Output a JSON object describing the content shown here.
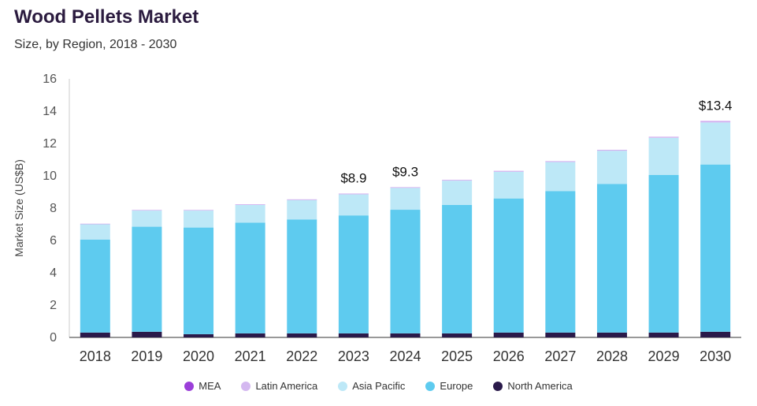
{
  "header": {
    "title": "Wood Pellets Market",
    "subtitle": "Size, by Region, 2018 - 2030"
  },
  "chart_data": {
    "type": "bar",
    "stacked": true,
    "title": "Wood Pellets Market",
    "subtitle": "Size, by Region, 2018 - 2030",
    "xlabel": "",
    "ylabel": "Market Size (US$B)",
    "ylim": [
      0,
      16
    ],
    "yticks": [
      0,
      2,
      4,
      6,
      8,
      10,
      12,
      14,
      16
    ],
    "categories": [
      "2018",
      "2019",
      "2020",
      "2021",
      "2022",
      "2023",
      "2024",
      "2025",
      "2026",
      "2027",
      "2028",
      "2029",
      "2030"
    ],
    "series": [
      {
        "name": "North America",
        "color": "#2a1a4a",
        "values": [
          0.3,
          0.35,
          0.2,
          0.25,
          0.25,
          0.25,
          0.25,
          0.25,
          0.3,
          0.3,
          0.3,
          0.3,
          0.35
        ]
      },
      {
        "name": "Europe",
        "color": "#5ecbef",
        "values": [
          5.75,
          6.5,
          6.6,
          6.85,
          7.05,
          7.3,
          7.65,
          7.95,
          8.3,
          8.75,
          9.2,
          9.75,
          10.35
        ]
      },
      {
        "name": "Asia Pacific",
        "color": "#bde8f7",
        "values": [
          0.95,
          1.0,
          1.05,
          1.1,
          1.2,
          1.3,
          1.35,
          1.5,
          1.65,
          1.8,
          2.05,
          2.3,
          2.6
        ]
      },
      {
        "name": "Latin America",
        "color": "#d4b8f0",
        "values": [
          0.02,
          0.02,
          0.02,
          0.02,
          0.03,
          0.03,
          0.03,
          0.03,
          0.04,
          0.04,
          0.04,
          0.05,
          0.06
        ]
      },
      {
        "name": "MEA",
        "color": "#9b3fd9",
        "values": [
          0.01,
          0.01,
          0.01,
          0.01,
          0.01,
          0.01,
          0.01,
          0.01,
          0.01,
          0.01,
          0.01,
          0.01,
          0.02
        ]
      }
    ],
    "data_labels": [
      {
        "category": "2023",
        "text": "$8.9",
        "value": 8.9
      },
      {
        "category": "2024",
        "text": "$9.3",
        "value": 9.3
      },
      {
        "category": "2030",
        "text": "$13.4",
        "value": 13.4
      }
    ],
    "legend": {
      "placement": "bottom",
      "order": [
        "MEA",
        "Latin America",
        "Asia Pacific",
        "Europe",
        "North America"
      ]
    },
    "grid": false
  }
}
